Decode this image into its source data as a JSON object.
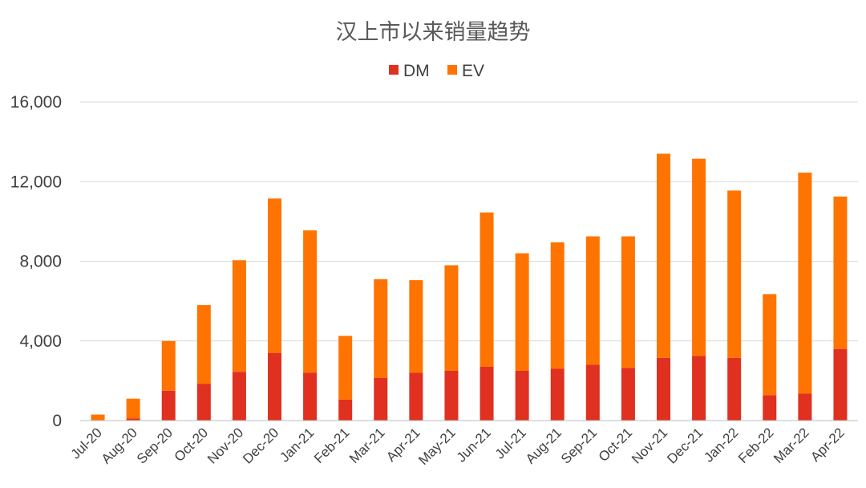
{
  "chart_data": {
    "type": "bar",
    "stacked": true,
    "title": "汉上市以来销量趋势",
    "categories": [
      "Jul-20",
      "Aug-20",
      "Sep-20",
      "Oct-20",
      "Nov-20",
      "Dec-20",
      "Jan-21",
      "Feb-21",
      "Mar-21",
      "Apr-21",
      "May-21",
      "Jun-21",
      "Jul-21",
      "Aug-21",
      "Sep-21",
      "Oct-21",
      "Nov-21",
      "Dec-21",
      "Jan-22",
      "Feb-22",
      "Mar-22",
      "Apr-22"
    ],
    "series": [
      {
        "name": "DM",
        "color": "#e03020",
        "values": [
          0,
          100,
          1500,
          1850,
          2450,
          3400,
          2400,
          1050,
          2150,
          2400,
          2500,
          2700,
          2500,
          2600,
          2800,
          2650,
          3150,
          3250,
          3150,
          1280,
          1350,
          3600
        ]
      },
      {
        "name": "EV",
        "color": "#ff7300",
        "values": [
          300,
          1000,
          2500,
          3950,
          5600,
          7750,
          7150,
          3200,
          4950,
          4650,
          5300,
          7750,
          5900,
          6350,
          6450,
          6600,
          10250,
          9900,
          8400,
          5070,
          11100,
          7650
        ]
      }
    ],
    "ylim": [
      0,
      16000
    ],
    "yticks": [
      0,
      4000,
      8000,
      12000,
      16000
    ],
    "ytick_labels": [
      "0",
      "4,000",
      "8,000",
      "12,000",
      "16,000"
    ],
    "xlabel": "",
    "ylabel": "",
    "grid": true,
    "legend_position": "top-center"
  }
}
